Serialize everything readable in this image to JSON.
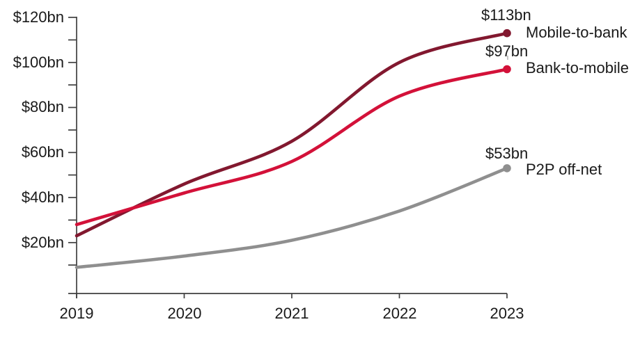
{
  "background": "#FFFFFF",
  "text_color": "#1A1A1A",
  "axis_color": "#3F3F3F",
  "leader_dash_color": "#B3B3B3",
  "chart_data": {
    "type": "line",
    "title": "",
    "xlabel": "",
    "ylabel": "",
    "x": [
      2019,
      2020,
      2021,
      2022,
      2023
    ],
    "x_tick_labels": [
      "2019",
      "2020",
      "2021",
      "2022",
      "2023"
    ],
    "y_tick_labels": [
      "$20bn",
      "$40bn",
      "$60bn",
      "$80bn",
      "$100bn",
      "$120bn"
    ],
    "y_tick_values": [
      20,
      40,
      60,
      80,
      100,
      120
    ],
    "y_minor_tick_step": 10,
    "ylim": [
      0,
      120
    ],
    "grid": false,
    "curve": "smooth",
    "legend_position": "right of line ends",
    "series": [
      {
        "name": "Mobile-to-bank",
        "end_label": "$113bn",
        "color": "#82182F",
        "values": [
          23,
          46,
          65,
          100,
          113
        ]
      },
      {
        "name": "Bank-to-mobile",
        "end_label": "$97bn",
        "color": "#D31139",
        "values": [
          28,
          42,
          56,
          85,
          97
        ]
      },
      {
        "name": "P2P off-net",
        "end_label": "$53bn",
        "color": "#8F8F8F",
        "values": [
          9,
          14,
          21,
          34,
          53
        ]
      }
    ]
  }
}
